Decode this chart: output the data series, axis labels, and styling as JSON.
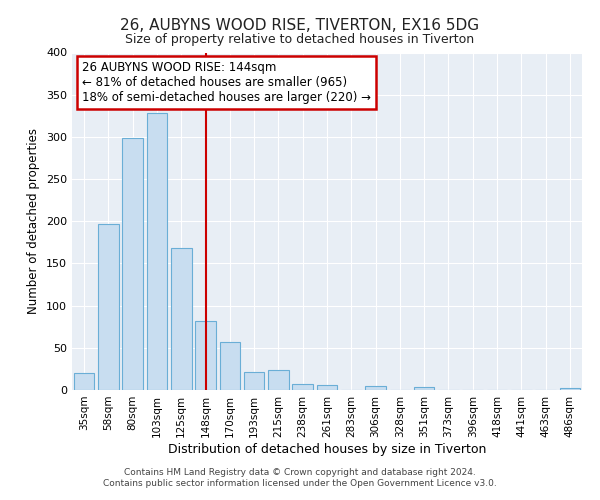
{
  "title": "26, AUBYNS WOOD RISE, TIVERTON, EX16 5DG",
  "subtitle": "Size of property relative to detached houses in Tiverton",
  "xlabel": "Distribution of detached houses by size in Tiverton",
  "ylabel": "Number of detached properties",
  "bar_labels": [
    "35sqm",
    "58sqm",
    "80sqm",
    "103sqm",
    "125sqm",
    "148sqm",
    "170sqm",
    "193sqm",
    "215sqm",
    "238sqm",
    "261sqm",
    "283sqm",
    "306sqm",
    "328sqm",
    "351sqm",
    "373sqm",
    "396sqm",
    "418sqm",
    "441sqm",
    "463sqm",
    "486sqm"
  ],
  "bar_values": [
    20,
    197,
    299,
    328,
    168,
    82,
    57,
    21,
    24,
    7,
    6,
    0,
    5,
    0,
    4,
    0,
    0,
    0,
    0,
    0,
    2
  ],
  "bar_color": "#c8ddf0",
  "bar_edge_color": "#6aaed6",
  "vline_x_index": 5,
  "vline_color": "#cc0000",
  "ylim": [
    0,
    400
  ],
  "yticks": [
    0,
    50,
    100,
    150,
    200,
    250,
    300,
    350,
    400
  ],
  "annotation_title": "26 AUBYNS WOOD RISE: 144sqm",
  "annotation_line1": "← 81% of detached houses are smaller (965)",
  "annotation_line2": "18% of semi-detached houses are larger (220) →",
  "annotation_box_color": "#ffffff",
  "annotation_box_edge": "#cc0000",
  "footnote1": "Contains HM Land Registry data © Crown copyright and database right 2024.",
  "footnote2": "Contains public sector information licensed under the Open Government Licence v3.0.",
  "background_color": "#ffffff",
  "plot_background": "#e8eef5",
  "grid_color": "#ffffff",
  "title_fontsize": 11,
  "subtitle_fontsize": 9
}
